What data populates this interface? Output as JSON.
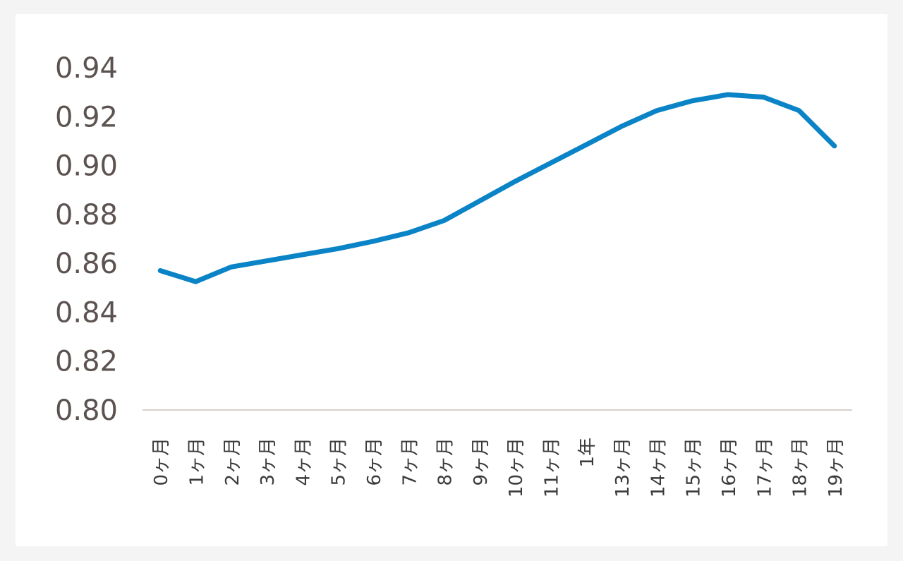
{
  "chart_data": {
    "type": "line",
    "title": "",
    "xlabel": "",
    "ylabel": "",
    "ylim": [
      0.8,
      0.94
    ],
    "yticks": [
      "0.80",
      "0.82",
      "0.84",
      "0.86",
      "0.88",
      "0.90",
      "0.92",
      "0.94"
    ],
    "grid": false,
    "legend": "none",
    "categories": [
      "0ヶ月",
      "1ヶ月",
      "2ヶ月",
      "3ヶ月",
      "4ヶ月",
      "5ヶ月",
      "6ヶ月",
      "7ヶ月",
      "8ヶ月",
      "9ヶ月",
      "10ヶ月",
      "11ヶ月",
      "1年",
      "13ヶ月",
      "14ヶ月",
      "15ヶ月",
      "16ヶ月",
      "17ヶ月",
      "18ヶ月",
      "19ヶ月"
    ],
    "series": [
      {
        "color": "#0a84c6",
        "values": [
          0.857,
          0.8525,
          0.8585,
          0.861,
          0.8635,
          0.866,
          0.869,
          0.8725,
          0.8775,
          0.8855,
          0.8935,
          0.901,
          0.9085,
          0.916,
          0.9225,
          0.9265,
          0.929,
          0.928,
          0.9225,
          0.908
        ]
      }
    ],
    "axis_color": "#d6d2cd"
  }
}
